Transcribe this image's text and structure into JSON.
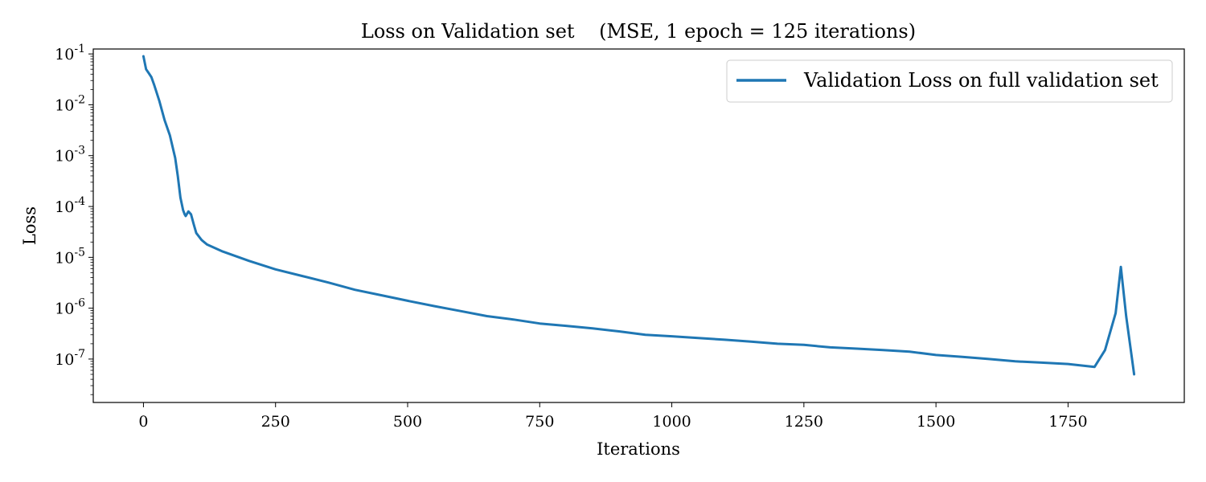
{
  "chart_data": {
    "type": "line",
    "title": "Loss on Validation set    (MSE, 1 epoch = 125 iterations)",
    "xlabel": "Iterations",
    "ylabel": "Loss",
    "xlim": [
      -95,
      1970
    ],
    "ylim": [
      1.4e-08,
      0.125
    ],
    "yscale": "log",
    "xticks": [
      0,
      250,
      500,
      750,
      1000,
      1250,
      1500,
      1750
    ],
    "xtick_labels": [
      "0",
      "250",
      "500",
      "750",
      "1000",
      "1250",
      "1500",
      "1750"
    ],
    "yticks": [
      {
        "value": 1e-07,
        "base": "10",
        "exp": "-7"
      },
      {
        "value": 1e-06,
        "base": "10",
        "exp": "-6"
      },
      {
        "value": 1e-05,
        "base": "10",
        "exp": "-5"
      },
      {
        "value": 0.0001,
        "base": "10",
        "exp": "-4"
      },
      {
        "value": 0.001,
        "base": "10",
        "exp": "-3"
      },
      {
        "value": 0.01,
        "base": "10",
        "exp": "-2"
      },
      {
        "value": 0.1,
        "base": "10",
        "exp": "-1"
      }
    ],
    "grid": false,
    "legend_position": "top-right",
    "series": [
      {
        "name": "Validation Loss on full validation set",
        "color": "#1f77b4",
        "x": [
          0,
          5,
          10,
          15,
          20,
          30,
          40,
          50,
          60,
          65,
          70,
          75,
          78,
          80,
          85,
          90,
          95,
          100,
          110,
          120,
          150,
          200,
          250,
          300,
          350,
          400,
          450,
          500,
          550,
          600,
          650,
          700,
          750,
          800,
          850,
          900,
          950,
          1000,
          1050,
          1100,
          1150,
          1200,
          1250,
          1300,
          1350,
          1400,
          1450,
          1500,
          1550,
          1600,
          1650,
          1700,
          1750,
          1800,
          1820,
          1840,
          1850,
          1860,
          1875
        ],
        "y": [
          0.09,
          0.05,
          0.042,
          0.035,
          0.025,
          0.012,
          0.005,
          0.0025,
          0.0009,
          0.0004,
          0.00015,
          8.5e-05,
          7e-05,
          6.5e-05,
          8e-05,
          7e-05,
          4.5e-05,
          3e-05,
          2.2e-05,
          1.8e-05,
          1.3e-05,
          8.5e-06,
          5.8e-06,
          4.3e-06,
          3.2e-06,
          2.3e-06,
          1.8e-06,
          1.4e-06,
          1.1e-06,
          8.8e-07,
          7e-07,
          6e-07,
          5e-07,
          4.5e-07,
          4e-07,
          3.5e-07,
          3e-07,
          2.8e-07,
          2.6e-07,
          2.4e-07,
          2.2e-07,
          2e-07,
          1.9e-07,
          1.7e-07,
          1.6e-07,
          1.5e-07,
          1.4e-07,
          1.2e-07,
          1.1e-07,
          1e-07,
          9e-08,
          8.5e-08,
          8e-08,
          7e-08,
          1.5e-07,
          8e-07,
          6.5e-06,
          7e-07,
          5e-08
        ]
      }
    ]
  }
}
